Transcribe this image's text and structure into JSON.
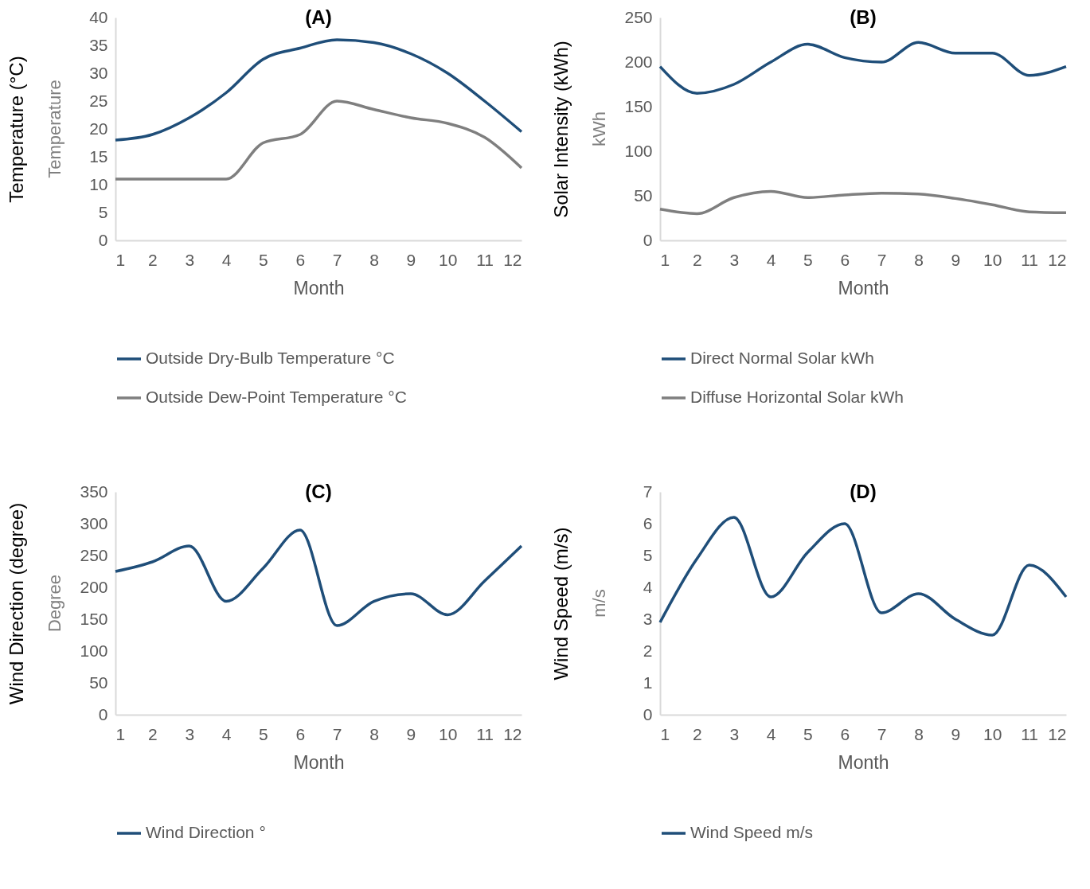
{
  "chart_data": [
    {
      "type": "line",
      "title": "(A)",
      "xlabel": "Month",
      "ylabel": "Temperature (°C)",
      "annotations": [
        "Temperature"
      ],
      "x": [
        1,
        2,
        3,
        4,
        5,
        6,
        7,
        8,
        9,
        10,
        11,
        12
      ],
      "xlim": [
        1,
        12
      ],
      "xticks": [
        1,
        2,
        3,
        4,
        5,
        6,
        7,
        8,
        9,
        10,
        11,
        12
      ],
      "ylim": [
        0,
        40
      ],
      "yticks": [
        0,
        5,
        10,
        15,
        20,
        25,
        30,
        35,
        40
      ],
      "legend": "bottom",
      "marker": "none",
      "line_style": "solid",
      "series": [
        {
          "name": "Outside Dry-Bulb Temperature °C",
          "color": "#1f4e79",
          "values": [
            18,
            19,
            22,
            26.5,
            32.5,
            34.5,
            36,
            35.5,
            33.5,
            30,
            25,
            19.5
          ]
        },
        {
          "name": "Outside Dew-Point Temperature °C",
          "color": "#7f7f7f",
          "values": [
            11,
            11,
            11,
            11,
            17.5,
            19,
            25,
            23.5,
            22,
            21,
            18.5,
            13
          ]
        }
      ]
    },
    {
      "type": "line",
      "title": "(B)",
      "xlabel": "Month",
      "ylabel": "Solar Intensity (kWh)",
      "annotations": [
        "kWh"
      ],
      "x": [
        1,
        2,
        3,
        4,
        5,
        6,
        7,
        8,
        9,
        10,
        11,
        12
      ],
      "xlim": [
        1,
        12
      ],
      "xticks": [
        1,
        2,
        3,
        4,
        5,
        6,
        7,
        8,
        9,
        10,
        11,
        12
      ],
      "ylim": [
        0,
        250
      ],
      "yticks": [
        0,
        50,
        100,
        150,
        200,
        250
      ],
      "legend": "bottom",
      "marker": "none",
      "line_style": "solid",
      "series": [
        {
          "name": "Direct Normal Solar kWh",
          "color": "#1f4e79",
          "values": [
            195,
            165,
            175,
            200,
            220,
            205,
            200,
            222,
            210,
            210,
            185,
            195
          ]
        },
        {
          "name": "Diffuse Horizontal Solar kWh",
          "color": "#7f7f7f",
          "values": [
            35,
            30,
            48,
            55,
            48,
            51,
            53,
            52,
            47,
            40,
            32,
            31
          ]
        }
      ]
    },
    {
      "type": "line",
      "title": "(C)",
      "xlabel": "Month",
      "ylabel": "Wind Direction (degree)",
      "annotations": [
        "Degree"
      ],
      "x": [
        1,
        2,
        3,
        4,
        5,
        6,
        7,
        8,
        9,
        10,
        11,
        12
      ],
      "xlim": [
        1,
        12
      ],
      "xticks": [
        1,
        2,
        3,
        4,
        5,
        6,
        7,
        8,
        9,
        10,
        11,
        12
      ],
      "ylim": [
        0,
        350
      ],
      "yticks": [
        0,
        50,
        100,
        150,
        200,
        250,
        300,
        350
      ],
      "legend": "bottom",
      "marker": "none",
      "line_style": "solid",
      "series": [
        {
          "name": "Wind Direction °",
          "color": "#1f4e79",
          "values": [
            225,
            240,
            265,
            178,
            230,
            290,
            140,
            178,
            190,
            157,
            210,
            265
          ]
        }
      ]
    },
    {
      "type": "line",
      "title": "(D)",
      "xlabel": "Month",
      "ylabel": "Wind Speed (m/s)",
      "annotations": [
        "m/s"
      ],
      "x": [
        1,
        2,
        3,
        4,
        5,
        6,
        7,
        8,
        9,
        10,
        11,
        12
      ],
      "xlim": [
        1,
        12
      ],
      "xticks": [
        1,
        2,
        3,
        4,
        5,
        6,
        7,
        8,
        9,
        10,
        11,
        12
      ],
      "ylim": [
        0,
        7
      ],
      "yticks": [
        0,
        1,
        2,
        3,
        4,
        5,
        6,
        7
      ],
      "legend": "bottom",
      "marker": "none",
      "line_style": "solid",
      "series": [
        {
          "name": "Wind Speed m/s",
          "color": "#1f4e79",
          "values": [
            2.9,
            4.9,
            6.2,
            3.7,
            5.1,
            6.0,
            3.2,
            3.8,
            3.0,
            2.5,
            4.7,
            3.7
          ]
        }
      ]
    }
  ]
}
